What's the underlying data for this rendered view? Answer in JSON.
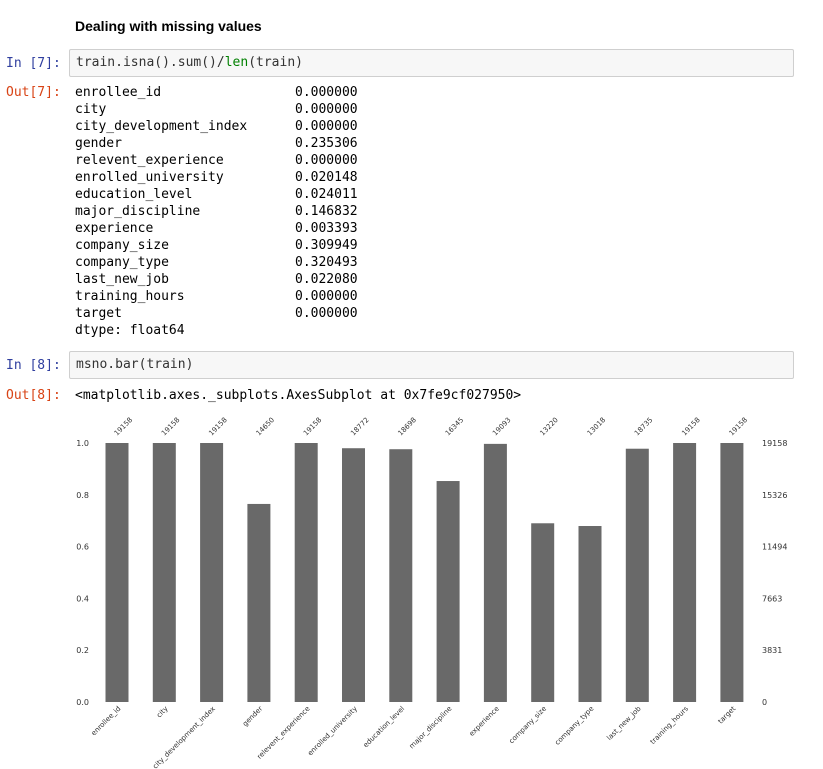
{
  "section_heading": "Dealing with missing values",
  "cells": [
    {
      "in_prompt": "In [7]:",
      "code_prefix": "train.isna().sum()/",
      "code_keyword": "len",
      "code_suffix": "(train)",
      "out_prompt": "Out[7]:"
    },
    {
      "in_prompt": "In [8]:",
      "code": "msno.bar(train)",
      "out_prompt": "Out[8]:",
      "out_text": "<matplotlib.axes._subplots.AxesSubplot at 0x7fe9cf027950>"
    }
  ],
  "series_output": {
    "rows": [
      {
        "name": "enrollee_id",
        "value": "0.000000"
      },
      {
        "name": "city",
        "value": "0.000000"
      },
      {
        "name": "city_development_index",
        "value": "0.000000"
      },
      {
        "name": "gender",
        "value": "0.235306"
      },
      {
        "name": "relevent_experience",
        "value": "0.000000"
      },
      {
        "name": "enrolled_university",
        "value": "0.020148"
      },
      {
        "name": "education_level",
        "value": "0.024011"
      },
      {
        "name": "major_discipline",
        "value": "0.146832"
      },
      {
        "name": "experience",
        "value": "0.003393"
      },
      {
        "name": "company_size",
        "value": "0.309949"
      },
      {
        "name": "company_type",
        "value": "0.320493"
      },
      {
        "name": "last_new_job",
        "value": "0.022080"
      },
      {
        "name": "training_hours",
        "value": "0.000000"
      },
      {
        "name": "target",
        "value": "0.000000"
      }
    ],
    "dtype": "dtype: float64"
  },
  "chart_data": {
    "type": "bar",
    "categories": [
      "enrollee_id",
      "city",
      "city_development_index",
      "gender",
      "relevent_experience",
      "enrolled_university",
      "education_level",
      "major_discipline",
      "experience",
      "company_size",
      "company_type",
      "last_new_job",
      "training_hours",
      "target"
    ],
    "values": [
      19158,
      19158,
      19158,
      14650,
      19158,
      18772,
      18698,
      16345,
      19093,
      13220,
      13018,
      18735,
      19158,
      19158
    ],
    "top_labels": [
      "19158",
      "19158",
      "19158",
      "14650",
      "19158",
      "18772",
      "18698",
      "16345",
      "19093",
      "13220",
      "13018",
      "18735",
      "19158",
      "19158"
    ],
    "total": 19158,
    "left_ticks": [
      "0.0",
      "0.2",
      "0.4",
      "0.6",
      "0.8",
      "1.0"
    ],
    "right_ticks": [
      "0",
      "3831",
      "7663",
      "11494",
      "15326",
      "19158"
    ],
    "ylim": [
      0,
      1
    ],
    "bar_color": "#696969",
    "grid": false
  }
}
